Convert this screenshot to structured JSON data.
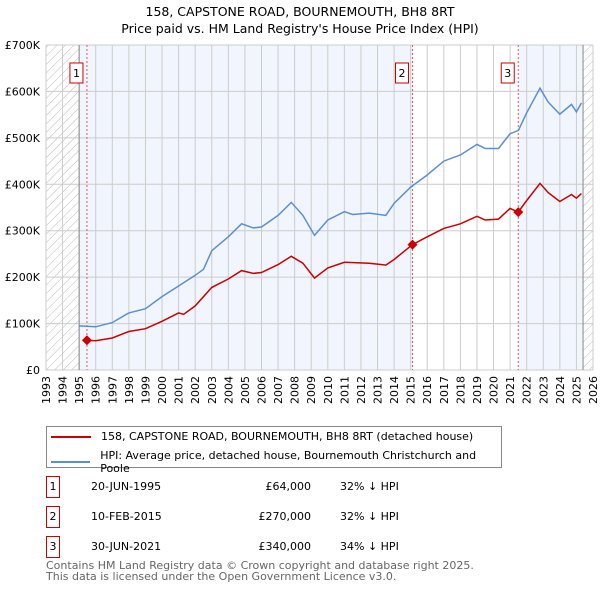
{
  "title": "158, CAPSTONE ROAD, BOURNEMOUTH, BH8 8RT",
  "subtitle": "Price paid vs. HM Land Registry's House Price Index (HPI)",
  "chart_data": {
    "type": "line",
    "xlim": [
      1993,
      2026
    ],
    "ylim": [
      0,
      700000
    ],
    "yticks": [
      0,
      100000,
      200000,
      300000,
      400000,
      500000,
      600000,
      700000
    ],
    "ytick_labels": [
      "£0",
      "£100K",
      "£200K",
      "£300K",
      "£400K",
      "£500K",
      "£600K",
      "£700K"
    ],
    "xticks": [
      1993,
      1994,
      1995,
      1996,
      1997,
      1998,
      1999,
      2000,
      2001,
      2002,
      2003,
      2004,
      2005,
      2006,
      2007,
      2008,
      2009,
      2010,
      2011,
      2012,
      2013,
      2014,
      2015,
      2016,
      2017,
      2018,
      2019,
      2020,
      2021,
      2022,
      2023,
      2024,
      2025,
      2026
    ],
    "grid": true,
    "data_range": [
      1995,
      2025.4
    ],
    "shaded_periods": [
      [
        1995,
        2015.11
      ],
      [
        2021.49,
        2025.4
      ]
    ],
    "series": [
      {
        "name": "158, CAPSTONE ROAD, BOURNEMOUTH, BH8 8RT (detached house)",
        "color": "#cc0000",
        "x": [
          1995.47,
          1996,
          1997,
          1998,
          1999,
          2000,
          2001,
          2001.3,
          2002,
          2003,
          2004,
          2004.8,
          2005.5,
          2006,
          2007,
          2007.8,
          2008.5,
          2009.2,
          2010,
          2011,
          2012.5,
          2013.5,
          2014,
          2015.11,
          2016,
          2017,
          2018,
          2019,
          2019.5,
          2020.3,
          2021,
          2021.49,
          2022,
          2022.8,
          2023.3,
          2024,
          2024.7,
          2025,
          2025.3
        ],
        "y": [
          64000,
          63000,
          69000,
          83000,
          89000,
          105000,
          123000,
          120000,
          138000,
          178000,
          196000,
          214000,
          208000,
          210000,
          227000,
          245000,
          230000,
          198000,
          220000,
          232000,
          230000,
          226000,
          238000,
          270000,
          287000,
          305000,
          315000,
          331000,
          323000,
          325000,
          348000,
          340000,
          365000,
          402000,
          382000,
          363000,
          378000,
          370000,
          380000
        ]
      },
      {
        "name": "HPI: Average price, detached house, Bournemouth Christchurch and Poole",
        "color": "#5b8fd4",
        "x": [
          1995,
          1996,
          1997,
          1998,
          1999,
          2000,
          2001,
          2002,
          2002.5,
          2003,
          2004,
          2004.8,
          2005.5,
          2006,
          2007,
          2007.8,
          2008.5,
          2009.2,
          2010,
          2011,
          2011.5,
          2012.5,
          2013.5,
          2014,
          2015,
          2016,
          2017,
          2018,
          2019,
          2019.5,
          2020.3,
          2021,
          2021.5,
          2022,
          2022.8,
          2023.3,
          2024,
          2024.7,
          2025,
          2025.3
        ],
        "y": [
          95000,
          93000,
          102000,
          123000,
          132000,
          158000,
          181000,
          204000,
          217000,
          257000,
          287000,
          315000,
          306000,
          308000,
          333000,
          361000,
          333000,
          290000,
          323000,
          341000,
          335000,
          338000,
          333000,
          359000,
          394000,
          420000,
          450000,
          463000,
          486000,
          477000,
          477000,
          509000,
          516000,
          554000,
          607000,
          577000,
          551000,
          572000,
          556000,
          575000
        ]
      }
    ],
    "sales": [
      {
        "label": "1",
        "x": 1995.47,
        "y": 64000
      },
      {
        "label": "2",
        "x": 2015.11,
        "y": 270000
      },
      {
        "label": "3",
        "x": 2021.49,
        "y": 340000
      }
    ]
  },
  "legend": {
    "red_label": "158, CAPSTONE ROAD, BOURNEMOUTH, BH8 8RT (detached house)",
    "blue_label": "HPI: Average price, detached house, Bournemouth Christchurch and Poole"
  },
  "table": [
    {
      "num": "1",
      "date": "20-JUN-1995",
      "price": "£64,000",
      "hpi": "32% ↓ HPI"
    },
    {
      "num": "2",
      "date": "10-FEB-2015",
      "price": "£270,000",
      "hpi": "32% ↓ HPI"
    },
    {
      "num": "3",
      "date": "30-JUN-2021",
      "price": "£340,000",
      "hpi": "34% ↓ HPI"
    }
  ],
  "footer": {
    "line1": "Contains HM Land Registry data © Crown copyright and database right 2025.",
    "line2": "This data is licensed under the Open Government Licence v3.0."
  }
}
